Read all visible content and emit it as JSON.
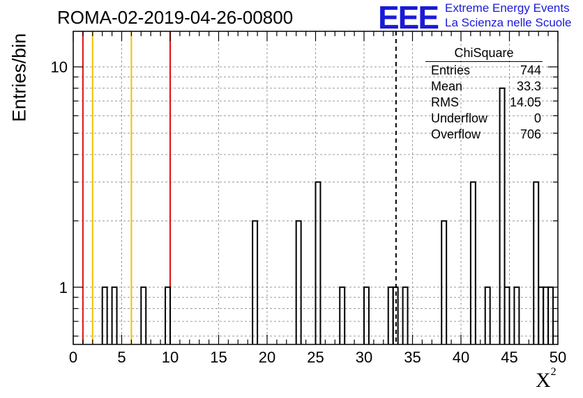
{
  "title": "ROMA-02-2019-04-26-00800",
  "logo": {
    "mark": "EEE",
    "line1": "Extreme Energy Events",
    "line2": "La Scienza nelle Scuole"
  },
  "stats": {
    "header": "ChiSquare",
    "rows": [
      {
        "label": "Entries",
        "value": "744"
      },
      {
        "label": "Mean",
        "value": "33.3"
      },
      {
        "label": "RMS",
        "value": "14.05"
      },
      {
        "label": "Underflow",
        "value": "0"
      },
      {
        "label": "Overflow",
        "value": "706"
      }
    ]
  },
  "colors": {
    "red": "#dd1111",
    "yellow": "#f2c200",
    "grid": "#9a9a9a",
    "hist": "#000000"
  },
  "chart_data": {
    "type": "histogram",
    "xlabel": "X",
    "xlabel_superscript": "2",
    "ylabel": "Entries/bin",
    "xlim": [
      0,
      50
    ],
    "ylog": true,
    "ylim": [
      0.55,
      14.5
    ],
    "bin_width": 0.5,
    "xticks": [
      0,
      5,
      10,
      15,
      20,
      25,
      30,
      35,
      40,
      45,
      50
    ],
    "xtick_labels": [
      "0",
      "5",
      "10",
      "15",
      "20",
      "25",
      "30",
      "35",
      "40",
      "45",
      "50"
    ],
    "ytick_labels": [
      {
        "value": 1,
        "label": "1"
      },
      {
        "value": 10,
        "label": "10"
      }
    ],
    "grid": true,
    "bins": [
      {
        "x": 3.0,
        "count": 1
      },
      {
        "x": 4.0,
        "count": 1
      },
      {
        "x": 7.0,
        "count": 1
      },
      {
        "x": 9.5,
        "count": 1
      },
      {
        "x": 18.5,
        "count": 2
      },
      {
        "x": 23.0,
        "count": 2
      },
      {
        "x": 25.0,
        "count": 3
      },
      {
        "x": 27.5,
        "count": 1
      },
      {
        "x": 30.0,
        "count": 1
      },
      {
        "x": 32.5,
        "count": 1
      },
      {
        "x": 33.0,
        "count": 1
      },
      {
        "x": 34.0,
        "count": 1
      },
      {
        "x": 38.0,
        "count": 2
      },
      {
        "x": 41.0,
        "count": 3
      },
      {
        "x": 42.5,
        "count": 1
      },
      {
        "x": 44.0,
        "count": 8
      },
      {
        "x": 44.5,
        "count": 1
      },
      {
        "x": 45.5,
        "count": 1
      },
      {
        "x": 47.5,
        "count": 3
      },
      {
        "x": 48.0,
        "count": 1
      },
      {
        "x": 48.5,
        "count": 1
      },
      {
        "x": 49.0,
        "count": 1
      }
    ],
    "vertical_lines": [
      {
        "x": 1,
        "color": "red"
      },
      {
        "x": 2,
        "color": "yellow"
      },
      {
        "x": 6,
        "color": "yellow"
      },
      {
        "x": 10,
        "color": "red"
      }
    ],
    "mean_line": {
      "x": 33.3,
      "style": "dashed"
    }
  }
}
